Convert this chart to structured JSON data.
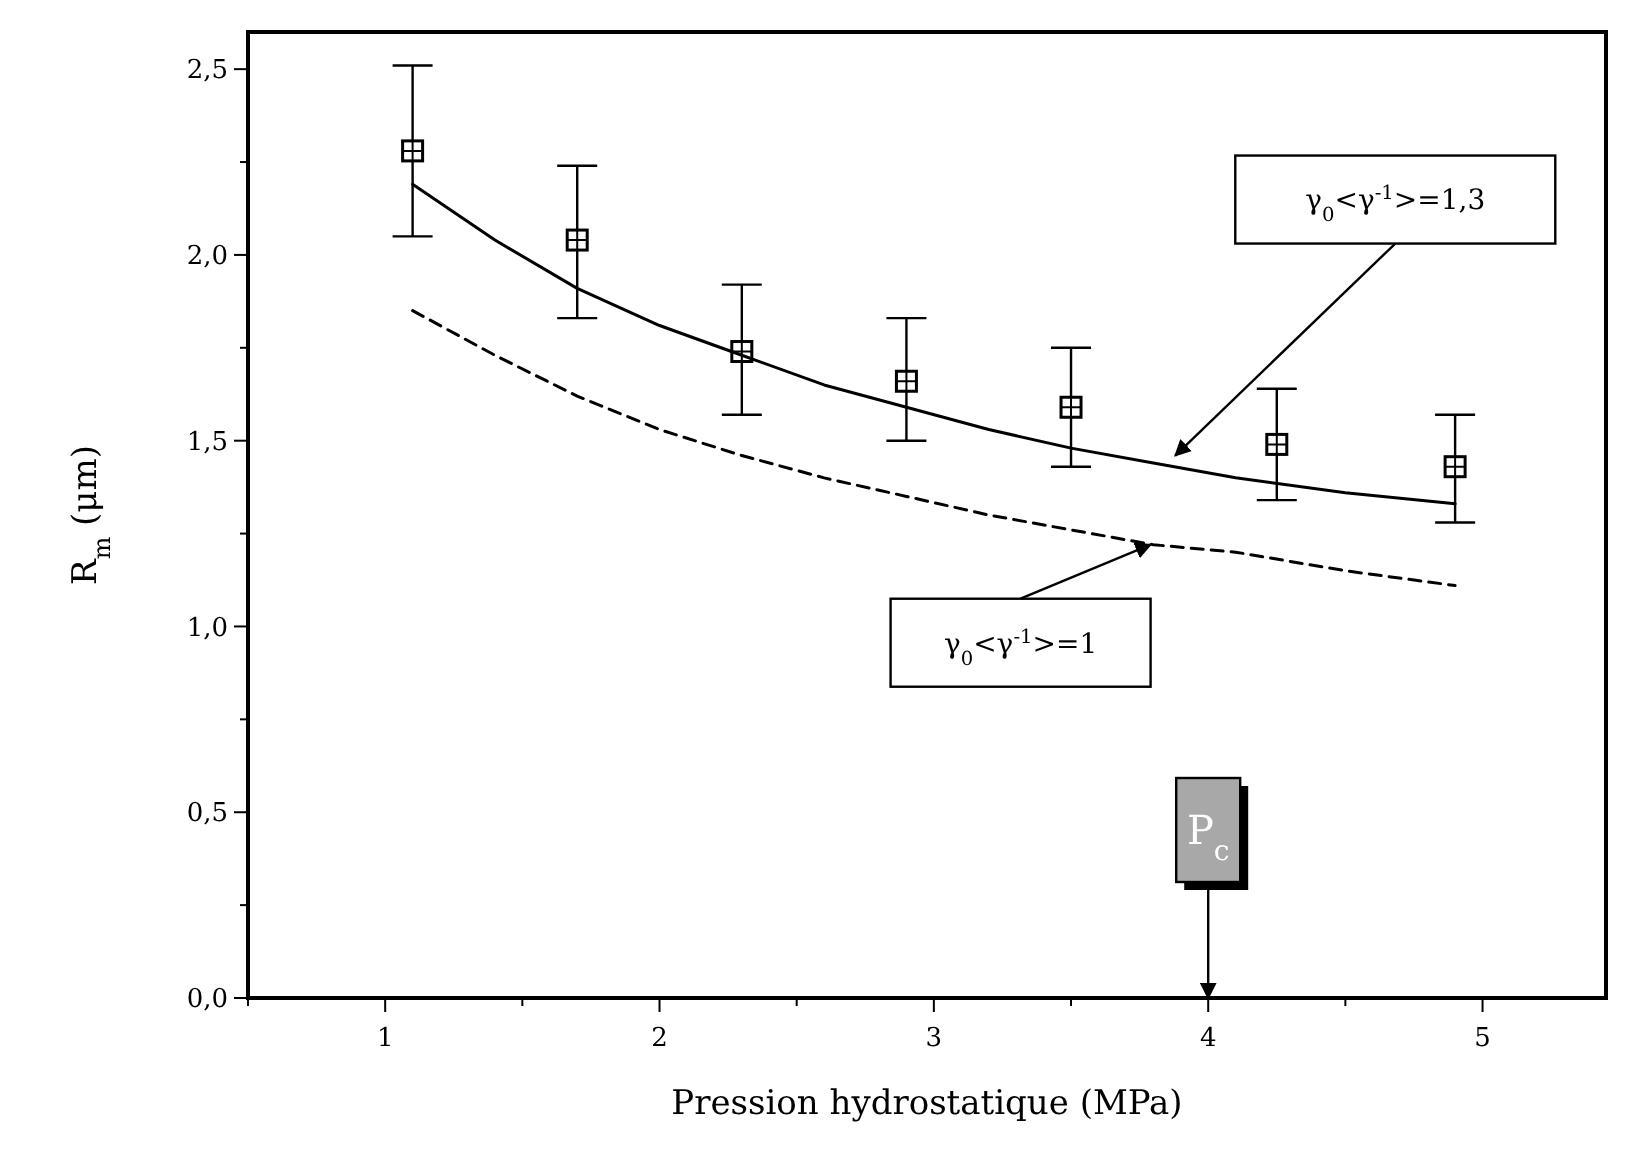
{
  "chart_data": {
    "type": "scatter",
    "xlabel": "Pression hydrostatique (MPa)",
    "ylabel": "R$_{m}$ (μm)",
    "xlim": [
      0.5,
      5.45
    ],
    "ylim": [
      0,
      2.6
    ],
    "xticks": [
      {
        "value": 0.5,
        "label": null
      },
      1,
      {
        "value": 1.5,
        "label": null
      },
      2,
      {
        "value": 2.5,
        "label": null
      },
      3,
      {
        "value": 3.5,
        "label": null
      },
      4,
      {
        "value": 4.5,
        "label": null
      },
      5
    ],
    "yticks": [
      {
        "value": 0,
        "label": "0,0"
      },
      {
        "value": 0.25,
        "label": null
      },
      {
        "value": 0.5,
        "label": "0,5"
      },
      {
        "value": 0.75,
        "label": null
      },
      {
        "value": 1,
        "label": "1,0"
      },
      {
        "value": 1.25,
        "label": null
      },
      {
        "value": 1.5,
        "label": "1,5"
      },
      {
        "value": 1.75,
        "label": null
      },
      {
        "value": 2,
        "label": "2,0"
      },
      {
        "value": 2.25,
        "label": null
      },
      {
        "value": 2.5,
        "label": "2,5"
      }
    ],
    "grid": false,
    "marker": "square",
    "series": [
      {
        "color": "#000000",
        "x": [
          1.1,
          1.7,
          2.3,
          2.9,
          3.5,
          4.25,
          4.9
        ],
        "values": [
          2.28,
          2.04,
          1.74,
          1.66,
          1.59,
          1.49,
          1.43
        ],
        "errors": [
          [
            2.05,
            2.51
          ],
          [
            1.83,
            2.24
          ],
          [
            1.57,
            1.92
          ],
          [
            1.5,
            1.83
          ],
          [
            1.43,
            1.75
          ],
          [
            1.34,
            1.64
          ],
          [
            1.28,
            1.57
          ]
        ]
      },
      {
        "type": "line",
        "color": "#000000",
        "line_style": "solid",
        "marker": "none",
        "x": [
          1.1,
          1.4,
          1.7,
          2.0,
          2.3,
          2.6,
          2.9,
          3.2,
          3.5,
          3.8,
          4.1,
          4.5,
          4.9
        ],
        "values": [
          2.19,
          2.04,
          1.91,
          1.81,
          1.73,
          1.65,
          1.59,
          1.53,
          1.48,
          1.44,
          1.4,
          1.36,
          1.33
        ]
      },
      {
        "type": "line",
        "color": "#000000",
        "line_style": "dashed",
        "marker": "none",
        "x": [
          1.1,
          1.4,
          1.7,
          2.0,
          2.3,
          2.6,
          2.9,
          3.2,
          3.5,
          3.8,
          4.1,
          4.5,
          4.9
        ],
        "values": [
          1.85,
          1.73,
          1.62,
          1.53,
          1.46,
          1.4,
          1.35,
          1.3,
          1.26,
          1.22,
          1.2,
          1.15,
          1.11
        ]
      }
    ],
    "annotations": [
      {
        "text": "γ$_{0}$<γ$^{-1}$>=1,3",
        "x": 3.88,
        "y": 1.46
      },
      {
        "text": "γ$_{0}$<γ$^{-1}$>=1",
        "x": 3.79,
        "y": 1.22
      }
    ],
    "ref_lines": [
      {
        "axis": "x",
        "value": 4,
        "label": "P$_{c}$"
      }
    ]
  }
}
